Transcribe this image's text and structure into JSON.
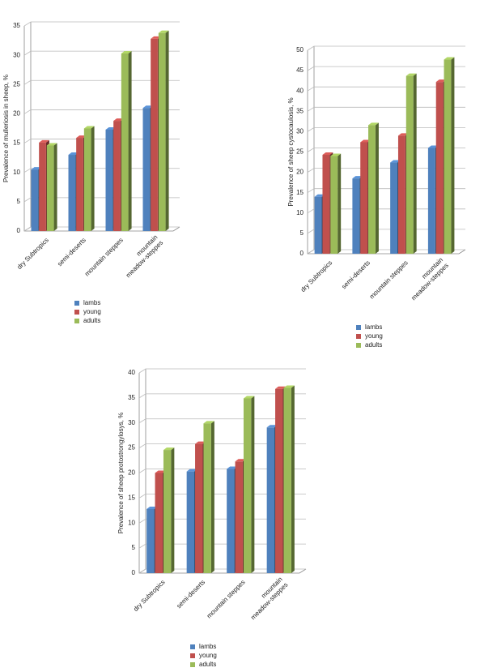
{
  "chart_data": [
    {
      "type": "bar3d",
      "y_label": "Prevalence of mulleriosis in sheep, %",
      "categories": [
        "dry Subtropics",
        "semi-deserts",
        "mountain steppes",
        "mountain meadow-steppes"
      ],
      "series": [
        {
          "name": "lambs",
          "color": "#4f81bd",
          "values": [
            10.5,
            13,
            17.3,
            21
          ]
        },
        {
          "name": "young",
          "color": "#c0504d",
          "values": [
            15.1,
            15.9,
            18.8,
            32.8
          ]
        },
        {
          "name": "adults",
          "color": "#9bbb59",
          "values": [
            14.6,
            17.5,
            30.3,
            33.8
          ]
        }
      ],
      "ylim": [
        0,
        35
      ],
      "yticks": [
        0,
        5,
        10,
        15,
        20,
        25,
        30,
        35
      ],
      "grid": true
    },
    {
      "type": "bar3d",
      "y_label": "Prevalence of sheep cystocaulosis, %",
      "categories": [
        "dry Subtropics",
        "semi-deserts",
        "mountain steppes",
        "mountain meadow-steppes"
      ],
      "series": [
        {
          "name": "lambs",
          "color": "#4f81bd",
          "values": [
            14,
            18.5,
            22.4,
            26
          ]
        },
        {
          "name": "young",
          "color": "#c0504d",
          "values": [
            24.3,
            27.4,
            29,
            42.2
          ]
        },
        {
          "name": "adults",
          "color": "#9bbb59",
          "values": [
            24,
            31.6,
            43.7,
            47.7
          ]
        }
      ],
      "ylim": [
        0,
        50
      ],
      "yticks": [
        0,
        5,
        10,
        15,
        20,
        25,
        30,
        35,
        40,
        45,
        50
      ],
      "grid": true
    },
    {
      "type": "bar3d",
      "y_label": "Prevalence of sheep protostrongylosys, %",
      "categories": [
        "dry Subtropics",
        "semi-deserts",
        "mountain steppes",
        "mountain meadow-steppes"
      ],
      "series": [
        {
          "name": "lambs",
          "color": "#4f81bd",
          "values": [
            12.8,
            20.3,
            20.8,
            29.1
          ]
        },
        {
          "name": "young",
          "color": "#c0504d",
          "values": [
            20,
            25.8,
            22.3,
            36.8
          ]
        },
        {
          "name": "adults",
          "color": "#9bbb59",
          "values": [
            24.6,
            29.9,
            34.9,
            37
          ]
        }
      ],
      "ylim": [
        0,
        40
      ],
      "yticks": [
        0,
        5,
        10,
        15,
        20,
        25,
        30,
        35,
        40
      ],
      "grid": true
    }
  ]
}
